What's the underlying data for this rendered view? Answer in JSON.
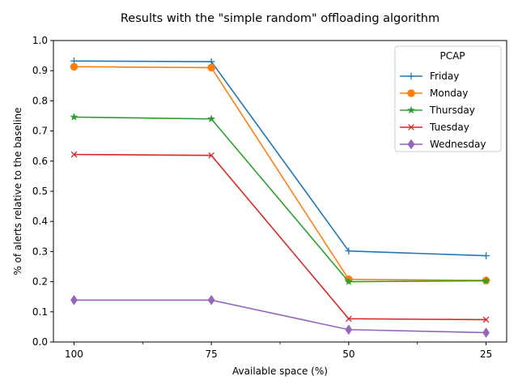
{
  "chart_data": {
    "type": "line",
    "title": "Results with the \"simple random\" offloading algorithm",
    "xlabel": "Available space (%)",
    "ylabel": "% of alerts relative to the baseline",
    "categories": [
      "100",
      "75",
      "50",
      "25"
    ],
    "ylim": [
      0.0,
      1.0
    ],
    "yticks": [
      "0.0",
      "0.1",
      "0.2",
      "0.3",
      "0.4",
      "0.5",
      "0.6",
      "0.7",
      "0.8",
      "0.9",
      "1.0"
    ],
    "grid": false,
    "legend": {
      "title": "PCAP",
      "position": "top-right"
    },
    "series": [
      {
        "name": "Friday",
        "color": "#1f77b4",
        "marker": "plus",
        "values": [
          0.932,
          0.93,
          0.302,
          0.286
        ]
      },
      {
        "name": "Monday",
        "color": "#ff7f0e",
        "marker": "circle",
        "values": [
          0.913,
          0.91,
          0.208,
          0.204
        ]
      },
      {
        "name": "Thursday",
        "color": "#2ca02c",
        "marker": "star",
        "values": [
          0.746,
          0.74,
          0.2,
          0.203
        ]
      },
      {
        "name": "Tuesday",
        "color": "#d62728",
        "marker": "x",
        "values": [
          0.622,
          0.619,
          0.077,
          0.074
        ]
      },
      {
        "name": "Wednesday",
        "color": "#9467bd",
        "marker": "diamond",
        "values": [
          0.139,
          0.139,
          0.041,
          0.031
        ]
      }
    ]
  }
}
